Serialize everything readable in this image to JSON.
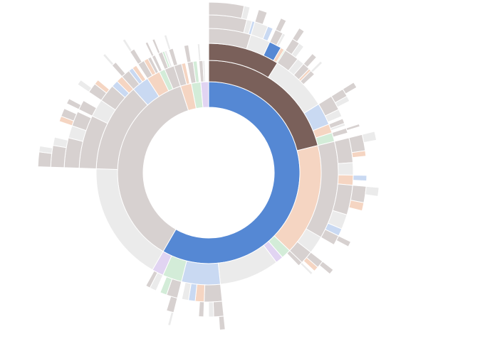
{
  "chart_data": {
    "type": "sunburst",
    "title": "",
    "colors": {
      "B": "#5588d4",
      "K": "#7a605a",
      "G": "#d7d1d0",
      "L": "#ebebeb",
      "P": "#f5d5c2",
      "N": "#d3ecd8",
      "U": "#e1d4f2",
      "S": "#c9d9f2"
    },
    "tree": [
      [
        "B",
        210,
        [
          [
            "K",
            76,
            [
              [
                "K",
                32,
                [
                  [
                    "G",
                    17,
                    [
                      [
                        "G",
                        14,
                        [
                          [
                            "G",
                            12,
                            []
                          ],
                          [
                            "L",
                            2,
                            []
                          ]
                        ]
                      ],
                      [
                        "L",
                        2,
                        []
                      ],
                      [
                        "S",
                        1,
                        []
                      ]
                    ]
                  ],
                  [
                    "L",
                    8,
                    [
                      [
                        "L",
                        5,
                        [
                          [
                            "G",
                            3,
                            []
                          ]
                        ]
                      ],
                      [
                        "S",
                        2,
                        []
                      ]
                    ]
                  ],
                  [
                    "B",
                    5,
                    [
                      [
                        "G",
                        3,
                        [
                          [
                            "G",
                            2,
                            []
                          ]
                        ]
                      ],
                      [
                        "L",
                        1,
                        []
                      ]
                    ]
                  ],
                  [
                    "P",
                    1.5,
                    []
                  ],
                  [
                    "N",
                    0.5,
                    []
                  ]
                ]
              ],
              [
                "L",
                26,
                [
                  [
                    "G",
                    6,
                    [
                      [
                        "G",
                        3,
                        [
                          [
                            "G",
                            2,
                            []
                          ]
                        ]
                      ],
                      [
                        "L",
                        2,
                        []
                      ]
                    ]
                  ],
                  [
                    "L",
                    3,
                    []
                  ],
                  [
                    "G",
                    3,
                    [
                      [
                        "G",
                        2,
                        []
                      ]
                    ]
                  ],
                  [
                    "P",
                    1,
                    []
                  ],
                  [
                    "G",
                    2,
                    [
                      [
                        "L",
                        1,
                        []
                      ]
                    ]
                  ]
                ]
              ],
              [
                "S",
                10,
                [
                  [
                    "G",
                    6,
                    [
                      [
                        "G",
                        3,
                        [
                          [
                            "G",
                            2,
                            []
                          ]
                        ]
                      ],
                      [
                        "L",
                        2,
                        []
                      ]
                    ]
                  ],
                  [
                    "L",
                    3,
                    []
                  ]
                ]
              ],
              [
                "P",
                4,
                [
                  [
                    "G",
                    2,
                    []
                  ],
                  [
                    "L",
                    1,
                    []
                  ]
                ]
              ],
              [
                "N",
                4,
                [
                  [
                    "G",
                    2,
                    [
                      [
                        "G",
                        1,
                        []
                      ]
                    ]
                  ]
                ]
              ]
            ]
          ],
          [
            "P",
            58,
            [
              [
                "G",
                44,
                [
                  [
                    "G",
                    10,
                    [
                      [
                        "G",
                        6,
                        [
                          [
                            "L",
                            3,
                            []
                          ]
                        ]
                      ],
                      [
                        "P",
                        2,
                        []
                      ]
                    ]
                  ],
                  [
                    "L",
                    5,
                    []
                  ],
                  [
                    "P",
                    4,
                    [
                      [
                        "S",
                        2,
                        []
                      ]
                    ]
                  ],
                  [
                    "G",
                    12,
                    [
                      [
                        "G",
                        6,
                        [
                          [
                            "L",
                            3,
                            []
                          ]
                        ]
                      ],
                      [
                        "P",
                        3,
                        []
                      ]
                    ]
                  ],
                  [
                    "L",
                    6,
                    []
                  ],
                  [
                    "S",
                    3,
                    []
                  ],
                  [
                    "G",
                    4,
                    [
                      [
                        "G",
                        2,
                        []
                      ]
                    ]
                  ]
                ]
              ],
              [
                "L",
                8,
                []
              ],
              [
                "G",
                6,
                [
                  [
                    "G",
                    3,
                    [
                      [
                        "G",
                        2,
                        []
                      ]
                    ]
                  ],
                  [
                    "P",
                    2,
                    []
                  ]
                ]
              ]
            ]
          ],
          [
            "N",
            5,
            [
              [
                "G",
                2,
                [
                  [
                    "L",
                    1,
                    []
                  ]
                ]
              ]
            ]
          ],
          [
            "U",
            4,
            []
          ],
          [
            "L",
            31,
            []
          ],
          [
            "S",
            20,
            [
              [
                "G",
                8,
                [
                  [
                    "G",
                    4,
                    [
                      [
                        "G",
                        2,
                        []
                      ]
                    ]
                  ],
                  [
                    "L",
                    2,
                    []
                  ]
                ]
              ],
              [
                "P",
                4,
                [
                  [
                    "G",
                    2,
                    []
                  ]
                ]
              ],
              [
                "S",
                3,
                []
              ],
              [
                "L",
                3,
                []
              ]
            ]
          ],
          [
            "N",
            10,
            [
              [
                "G",
                5,
                [
                  [
                    "G",
                    3,
                    [
                      [
                        "L",
                        1,
                        []
                      ]
                    ]
                  ]
                ]
              ],
              [
                "N",
                3,
                []
              ]
            ]
          ],
          [
            "U",
            6,
            [
              [
                "L",
                3,
                []
              ],
              [
                "G",
                2,
                []
              ]
            ]
          ]
        ]
      ],
      [
        "G",
        132,
        [
          [
            "L",
            62,
            []
          ],
          [
            "G",
            46,
            [
              [
                "G",
                24,
                [
                  [
                    "G",
                    12,
                    [
                      [
                        "G",
                        8,
                        [
                          [
                            "G",
                            5,
                            []
                          ],
                          [
                            "L",
                            2,
                            []
                          ]
                        ]
                      ],
                      [
                        "L",
                        3,
                        []
                      ]
                    ]
                  ],
                  [
                    "L",
                    5,
                    []
                  ],
                  [
                    "G",
                    6,
                    [
                      [
                        "P",
                        2,
                        []
                      ],
                      [
                        "G",
                        3,
                        []
                      ]
                    ]
                  ]
                ]
              ],
              [
                "L",
                8,
                [
                  [
                    "G",
                    4,
                    [
                      [
                        "G",
                        2,
                        []
                      ]
                    ]
                  ]
                ]
              ],
              [
                "G",
                8,
                [
                  [
                    "G",
                    4,
                    [
                      [
                        "L",
                        2,
                        []
                      ]
                    ]
                  ],
                  [
                    "P",
                    2,
                    []
                  ]
                ]
              ],
              [
                "S",
                3,
                []
              ],
              [
                "P",
                3,
                []
              ]
            ]
          ],
          [
            "S",
            9,
            [
              [
                "G",
                4,
                [
                  [
                    "G",
                    2,
                    [
                      [
                        "L",
                        1,
                        []
                      ]
                    ]
                  ]
                ]
              ],
              [
                "S",
                2,
                []
              ],
              [
                "P",
                2,
                []
              ]
            ]
          ],
          [
            "P",
            7,
            [
              [
                "G",
                3,
                [
                  [
                    "G",
                    2,
                    [
                      [
                        "L",
                        1,
                        []
                      ]
                    ]
                  ]
                ]
              ],
              [
                "P",
                2,
                []
              ],
              [
                "G",
                1.5,
                []
              ]
            ]
          ],
          [
            "N",
            3,
            [
              [
                "G",
                1.5,
                [
                  [
                    "G",
                    1,
                    []
                  ]
                ]
              ]
            ]
          ],
          [
            "G",
            5,
            [
              [
                "G",
                2,
                [
                  [
                    "G",
                    1,
                    []
                  ]
                ]
              ],
              [
                "N",
                1,
                []
              ],
              [
                "L",
                1,
                []
              ]
            ]
          ]
        ]
      ],
      [
        "P",
        7,
        [
          [
            "G",
            4,
            [
              [
                "G",
                2,
                [
                  [
                    "L",
                    1,
                    []
                  ]
                ]
              ]
            ]
          ],
          [
            "P",
            2,
            []
          ]
        ]
      ],
      [
        "N",
        6,
        [
          [
            "G",
            3,
            [
              [
                "G",
                2,
                []
              ]
            ]
          ],
          [
            "N",
            2,
            []
          ]
        ]
      ],
      [
        "U",
        5,
        [
          [
            "G",
            2,
            [
              [
                "L",
                1,
                []
              ]
            ]
          ],
          [
            "L",
            1,
            []
          ]
        ]
      ]
    ]
  }
}
